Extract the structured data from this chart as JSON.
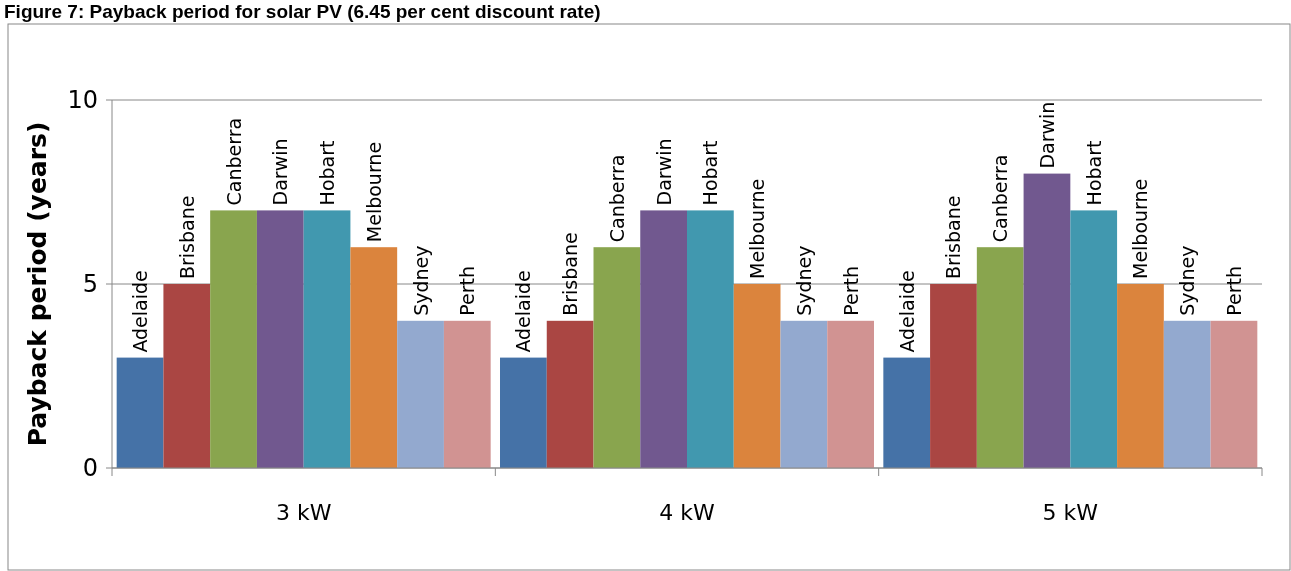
{
  "chart_data": {
    "type": "bar",
    "title": "Figure 7: Payback period for solar PV (6.45 per cent discount rate)",
    "ylabel": "Payback period (years)",
    "categories": [
      "3 kW",
      "4 kW",
      "5 kW"
    ],
    "series": [
      {
        "name": "Adelaide",
        "color": "#4572a7",
        "values": [
          3,
          3,
          3
        ]
      },
      {
        "name": "Brisbane",
        "color": "#aa4643",
        "values": [
          5,
          4,
          5
        ]
      },
      {
        "name": "Canberra",
        "color": "#89a54e",
        "values": [
          7,
          6,
          6
        ]
      },
      {
        "name": "Darwin",
        "color": "#71588f",
        "values": [
          7,
          7,
          8
        ]
      },
      {
        "name": "Hobart",
        "color": "#4198af",
        "values": [
          7,
          7,
          7
        ]
      },
      {
        "name": "Melbourne",
        "color": "#db843d",
        "values": [
          6,
          5,
          5
        ]
      },
      {
        "name": "Sydney",
        "color": "#93a9cf",
        "values": [
          4,
          4,
          4
        ]
      },
      {
        "name": "Perth",
        "color": "#d19392",
        "values": [
          4,
          4,
          4
        ]
      }
    ],
    "ylim": [
      0,
      10
    ],
    "yticks": [
      0,
      5,
      10
    ],
    "grid": "y",
    "legend": false
  }
}
